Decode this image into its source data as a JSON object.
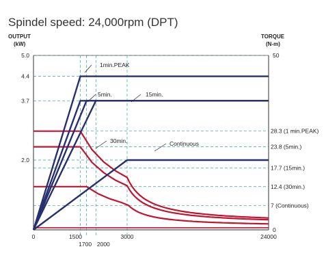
{
  "chart_data": {
    "type": "line",
    "title": "Spindel speed: 24,000rpm (DPT)",
    "left_axis_title": "OUTPUT",
    "left_axis_unit": "(kW)",
    "right_axis_title": "TORQUE",
    "right_axis_unit": "(N-m)",
    "x_range": [
      0,
      24000
    ],
    "x_ticks": [
      "0",
      "1500",
      "1700",
      "2000",
      "3000",
      "24000"
    ],
    "output_range": [
      0,
      5.0
    ],
    "output_ticks": [
      "2.0",
      "3.7",
      "4.4",
      "5.0"
    ],
    "torque_range": [
      0,
      50
    ],
    "torque_ticks": [
      "0",
      "50"
    ],
    "torque_labels": [
      {
        "value": 28.3,
        "text": "28.3 (1 min.PEAK)"
      },
      {
        "value": 23.8,
        "text": "23.8 (5min.)"
      },
      {
        "value": 17.7,
        "text": "17.7 (15min.)"
      },
      {
        "value": 12.4,
        "text": "12.4 (30min.)"
      },
      {
        "value": 7,
        "text": "7 (Continuous)"
      }
    ],
    "output_series": [
      {
        "name": "1min.PEAK",
        "points": [
          [
            0,
            0
          ],
          [
            1500,
            4.4
          ],
          [
            24000,
            4.4
          ]
        ]
      },
      {
        "name": "5min.",
        "points": [
          [
            0,
            0
          ],
          [
            1500,
            3.7
          ],
          [
            24000,
            3.7
          ]
        ]
      },
      {
        "name": "15min.",
        "points": [
          [
            0,
            0
          ],
          [
            2000,
            3.7
          ],
          [
            24000,
            3.7
          ]
        ]
      },
      {
        "name": "30min.",
        "points": [
          [
            0,
            0
          ],
          [
            1700,
            3.7
          ],
          [
            24000,
            3.7
          ]
        ]
      },
      {
        "name": "Continuous",
        "points": [
          [
            0,
            0
          ],
          [
            3000,
            2.0
          ],
          [
            24000,
            2.0
          ]
        ]
      }
    ],
    "torque_series": [
      {
        "base_torque": 28.3,
        "corner_rpm": 1500,
        "end_torque": 1.75
      },
      {
        "base_torque": 23.8,
        "corner_rpm": 1500,
        "end_torque": 1.5
      },
      {
        "base_torque": 12.4,
        "corner_rpm": 1700,
        "end_torque": 0.9
      }
    ],
    "colors": {
      "output": "#27306f",
      "torque": "#c4122f",
      "guide": "#2aa7a0",
      "frame": "#555555"
    },
    "grid": true
  }
}
